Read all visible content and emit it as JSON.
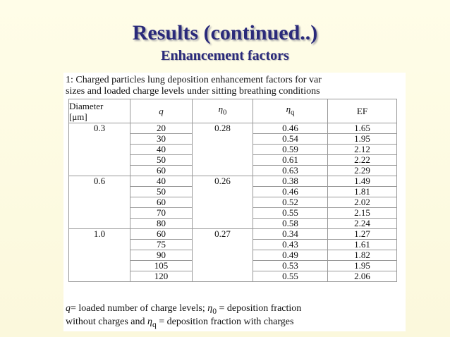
{
  "header": {
    "title": "Results (continued..)",
    "subtitle": "Enhancement factors"
  },
  "table": {
    "caption": [
      "1: Charged particles lung deposition enhancement factors for var",
      "sizes and loaded charge levels under sitting breathing conditions"
    ],
    "columns": [
      [
        {
          "text": "Diameter",
          "style": "plain"
        },
        {
          "text": "[μm]",
          "style": "plain"
        }
      ],
      [
        {
          "text": "q",
          "style": "italic"
        }
      ],
      [
        {
          "text": "η",
          "style": "italic"
        },
        {
          "text": "0",
          "style": "sub"
        }
      ],
      [
        {
          "text": "η",
          "style": "italic"
        },
        {
          "text": "q",
          "style": "sub"
        }
      ],
      [
        {
          "text": "EF",
          "style": "plain"
        }
      ]
    ],
    "rows": [
      [
        "0.3",
        "20",
        "0.28",
        "0.46",
        "1.65"
      ],
      [
        null,
        "30",
        null,
        "0.54",
        "1.95"
      ],
      [
        null,
        "40",
        null,
        "0.59",
        "2.12"
      ],
      [
        null,
        "50",
        null,
        "0.61",
        "2.22"
      ],
      [
        null,
        "60",
        null,
        "0.63",
        "2.29"
      ],
      [
        "0.6",
        "40",
        "0.26",
        "0.38",
        "1.49"
      ],
      [
        null,
        "50",
        null,
        "0.46",
        "1.81"
      ],
      [
        null,
        "60",
        null,
        "0.52",
        "2.02"
      ],
      [
        null,
        "70",
        null,
        "0.55",
        "2.15"
      ],
      [
        null,
        "80",
        null,
        "0.58",
        "2.24"
      ],
      [
        "1.0",
        "60",
        "0.27",
        "0.34",
        "1.27"
      ],
      [
        null,
        "75",
        null,
        "0.43",
        "1.61"
      ],
      [
        null,
        "90",
        null,
        "0.49",
        "1.82"
      ],
      [
        null,
        "105",
        null,
        "0.53",
        "1.95"
      ],
      [
        null,
        "120",
        null,
        "0.55",
        "2.06"
      ]
    ],
    "footnote": [
      [
        {
          "text": "q",
          "style": "italic"
        },
        {
          "text": "= loaded number of charge levels; ",
          "style": "plain"
        },
        {
          "text": "η",
          "style": "italic"
        },
        {
          "text": "0",
          "style": "sub"
        },
        {
          "text": " = deposition fraction",
          "style": "plain"
        }
      ],
      [
        {
          "text": "without charges and ",
          "style": "plain"
        },
        {
          "text": "η",
          "style": "italic"
        },
        {
          "text": "q",
          "style": "sub"
        },
        {
          "text": " = deposition fraction with charges",
          "style": "plain"
        }
      ]
    ]
  }
}
